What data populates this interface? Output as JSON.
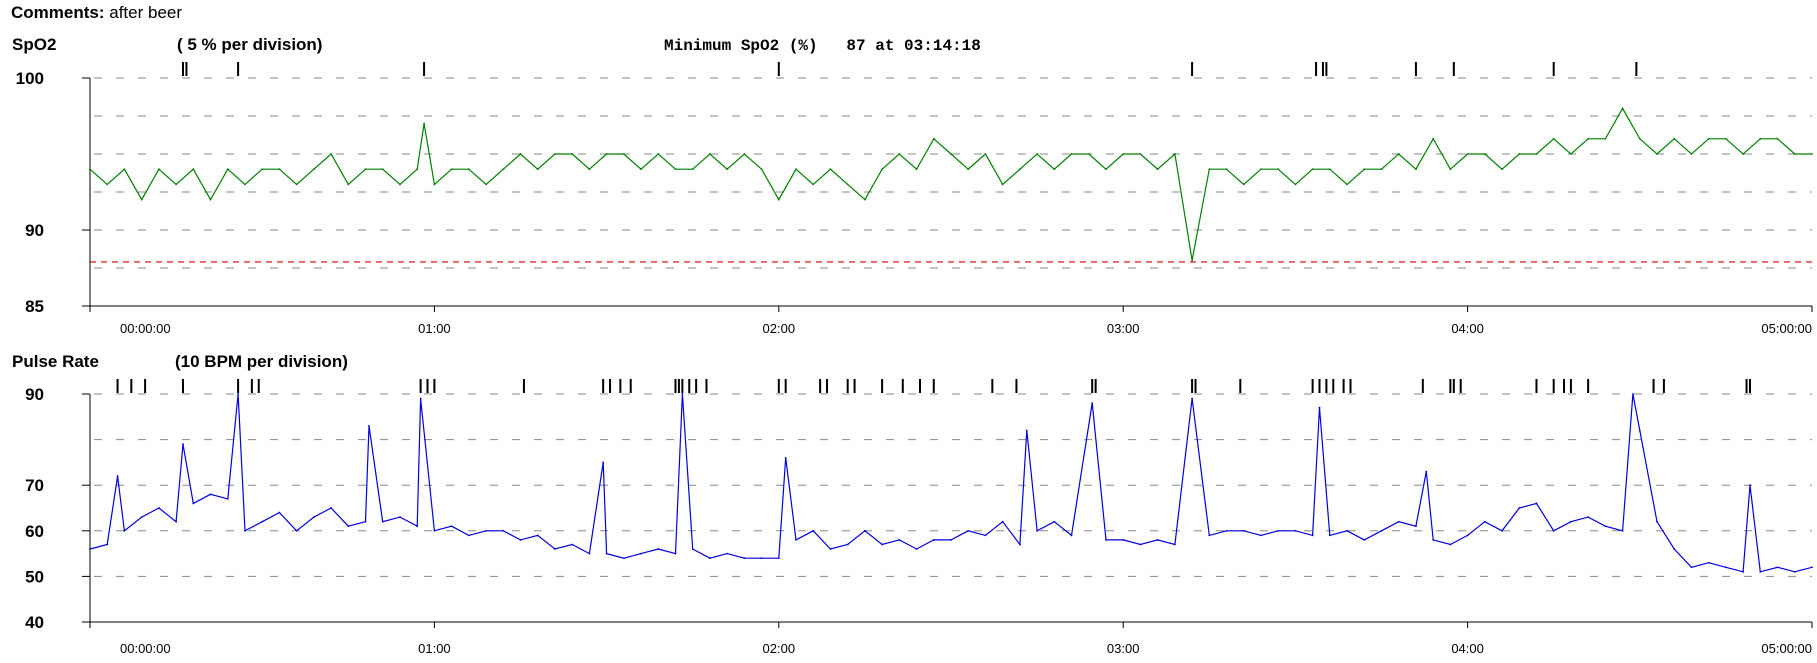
{
  "comments": {
    "label": "Comments:",
    "value": "after beer"
  },
  "chart_data": [
    {
      "type": "line",
      "title": "SpO2",
      "scale_note": "( 5 %  per division)",
      "summary": "Minimum SpO2 (%)   87 at 03:14:18",
      "x_unit": "hours",
      "xlim": [
        0,
        5
      ],
      "ylim": [
        85,
        100
      ],
      "y_ticks": [
        100,
        90,
        85
      ],
      "y_tick_labels": [
        "100",
        "90",
        "85"
      ],
      "gridlines": [
        100,
        97.5,
        95,
        92.5,
        90,
        87.5
      ],
      "threshold": 87.9,
      "threshold_color": "#e00000",
      "x_tick_labels": [
        {
          "x": 0,
          "label": "00:00:00"
        },
        {
          "x": 1,
          "label": "01:00"
        },
        {
          "x": 2,
          "label": "02:00"
        },
        {
          "x": 3,
          "label": "03:00"
        },
        {
          "x": 4,
          "label": "04:00"
        },
        {
          "x": 5,
          "label": "05:00:00"
        }
      ],
      "event_markers": [
        0.27,
        0.28,
        0.43,
        0.97,
        2.0,
        3.2,
        3.56,
        3.58,
        3.59,
        3.85,
        3.96,
        4.25,
        4.49
      ],
      "series": [
        {
          "color": "#008000",
          "x": [
            0,
            0.05,
            0.1,
            0.15,
            0.2,
            0.25,
            0.3,
            0.35,
            0.4,
            0.45,
            0.5,
            0.55,
            0.6,
            0.65,
            0.7,
            0.75,
            0.8,
            0.85,
            0.9,
            0.95,
            0.97,
            1.0,
            1.05,
            1.1,
            1.15,
            1.2,
            1.25,
            1.3,
            1.35,
            1.4,
            1.45,
            1.5,
            1.55,
            1.6,
            1.65,
            1.7,
            1.75,
            1.8,
            1.85,
            1.9,
            1.95,
            2.0,
            2.05,
            2.1,
            2.15,
            2.2,
            2.25,
            2.3,
            2.35,
            2.4,
            2.45,
            2.5,
            2.55,
            2.6,
            2.65,
            2.7,
            2.75,
            2.8,
            2.85,
            2.9,
            2.95,
            3.0,
            3.05,
            3.1,
            3.15,
            3.2,
            3.25,
            3.3,
            3.35,
            3.4,
            3.45,
            3.5,
            3.55,
            3.6,
            3.65,
            3.7,
            3.75,
            3.8,
            3.85,
            3.9,
            3.95,
            4.0,
            4.05,
            4.1,
            4.15,
            4.2,
            4.25,
            4.3,
            4.35,
            4.4,
            4.45,
            4.5,
            4.55,
            4.6,
            4.65,
            4.7,
            4.75,
            4.8,
            4.85,
            4.9,
            4.95,
            5.0
          ],
          "y": [
            94,
            93,
            94,
            92,
            94,
            93,
            94,
            92,
            94,
            93,
            94,
            94,
            93,
            94,
            95,
            93,
            94,
            94,
            93,
            94,
            97,
            93,
            94,
            94,
            93,
            94,
            95,
            94,
            95,
            95,
            94,
            95,
            95,
            94,
            95,
            94,
            94,
            95,
            94,
            95,
            94,
            92,
            94,
            93,
            94,
            93,
            92,
            94,
            95,
            94,
            96,
            95,
            94,
            95,
            93,
            94,
            95,
            94,
            95,
            95,
            94,
            95,
            95,
            94,
            95,
            88,
            94,
            94,
            93,
            94,
            94,
            93,
            94,
            94,
            93,
            94,
            94,
            95,
            94,
            96,
            94,
            95,
            95,
            94,
            95,
            95,
            96,
            95,
            96,
            96,
            98,
            96,
            95,
            96,
            95,
            96,
            96,
            95,
            96,
            96,
            95,
            95
          ]
        }
      ]
    },
    {
      "type": "line",
      "title": "Pulse Rate",
      "scale_note": "(10 BPM per division)",
      "x_unit": "hours",
      "xlim": [
        0,
        5
      ],
      "ylim": [
        40,
        90
      ],
      "y_ticks": [
        90,
        70,
        60,
        50,
        40
      ],
      "y_tick_labels": [
        "90",
        "70",
        "60",
        "50",
        "40"
      ],
      "gridlines": [
        90,
        80,
        70,
        60,
        50
      ],
      "x_tick_labels": [
        {
          "x": 0,
          "label": "00:00:00"
        },
        {
          "x": 1,
          "label": "01:00"
        },
        {
          "x": 2,
          "label": "02:00"
        },
        {
          "x": 3,
          "label": "03:00"
        },
        {
          "x": 4,
          "label": "04:00"
        },
        {
          "x": 5,
          "label": "05:00:00"
        }
      ],
      "event_markers": [
        0.08,
        0.12,
        0.16,
        0.27,
        0.43,
        0.47,
        0.49,
        0.96,
        0.98,
        1.0,
        1.26,
        1.49,
        1.51,
        1.54,
        1.57,
        1.7,
        1.71,
        1.72,
        1.74,
        1.76,
        1.79,
        2.0,
        2.02,
        2.12,
        2.14,
        2.2,
        2.22,
        2.3,
        2.36,
        2.41,
        2.45,
        2.62,
        2.69,
        2.91,
        2.92,
        3.2,
        3.21,
        3.34,
        3.55,
        3.57,
        3.59,
        3.61,
        3.64,
        3.66,
        3.87,
        3.95,
        3.96,
        3.98,
        4.2,
        4.25,
        4.28,
        4.3,
        4.35,
        4.54,
        4.57,
        4.81,
        4.82
      ],
      "series": [
        {
          "color": "#0000e0",
          "x": [
            0,
            0.05,
            0.08,
            0.1,
            0.15,
            0.2,
            0.25,
            0.27,
            0.3,
            0.35,
            0.4,
            0.43,
            0.45,
            0.5,
            0.55,
            0.6,
            0.65,
            0.7,
            0.75,
            0.8,
            0.81,
            0.85,
            0.9,
            0.95,
            0.96,
            1.0,
            1.05,
            1.1,
            1.15,
            1.2,
            1.25,
            1.3,
            1.35,
            1.4,
            1.45,
            1.49,
            1.5,
            1.55,
            1.6,
            1.65,
            1.7,
            1.72,
            1.75,
            1.8,
            1.85,
            1.9,
            1.95,
            2.0,
            2.02,
            2.05,
            2.1,
            2.15,
            2.2,
            2.25,
            2.3,
            2.35,
            2.4,
            2.45,
            2.5,
            2.55,
            2.6,
            2.65,
            2.7,
            2.72,
            2.75,
            2.8,
            2.85,
            2.91,
            2.95,
            3.0,
            3.05,
            3.1,
            3.15,
            3.2,
            3.25,
            3.3,
            3.35,
            3.4,
            3.45,
            3.5,
            3.55,
            3.57,
            3.6,
            3.65,
            3.7,
            3.75,
            3.8,
            3.85,
            3.88,
            3.9,
            3.95,
            4.0,
            4.05,
            4.1,
            4.15,
            4.2,
            4.25,
            4.3,
            4.35,
            4.4,
            4.45,
            4.48,
            4.5,
            4.55,
            4.6,
            4.65,
            4.7,
            4.75,
            4.8,
            4.82,
            4.85,
            4.9,
            4.95,
            5.0
          ],
          "y": [
            56,
            57,
            72,
            60,
            63,
            65,
            62,
            79,
            66,
            68,
            67,
            90,
            60,
            62,
            64,
            60,
            63,
            65,
            61,
            62,
            83,
            62,
            63,
            61,
            89,
            60,
            61,
            59,
            60,
            60,
            58,
            59,
            56,
            57,
            55,
            75,
            55,
            54,
            55,
            56,
            55,
            90,
            56,
            54,
            55,
            54,
            54,
            54,
            76,
            58,
            60,
            56,
            57,
            60,
            57,
            58,
            56,
            58,
            58,
            60,
            59,
            62,
            57,
            82,
            60,
            62,
            59,
            88,
            58,
            58,
            57,
            58,
            57,
            89,
            59,
            60,
            60,
            59,
            60,
            60,
            59,
            87,
            59,
            60,
            58,
            60,
            62,
            61,
            73,
            58,
            57,
            59,
            62,
            60,
            65,
            66,
            60,
            62,
            63,
            61,
            60,
            90,
            82,
            62,
            56,
            52,
            53,
            52,
            51,
            70,
            51,
            52,
            51,
            52
          ]
        }
      ]
    }
  ]
}
